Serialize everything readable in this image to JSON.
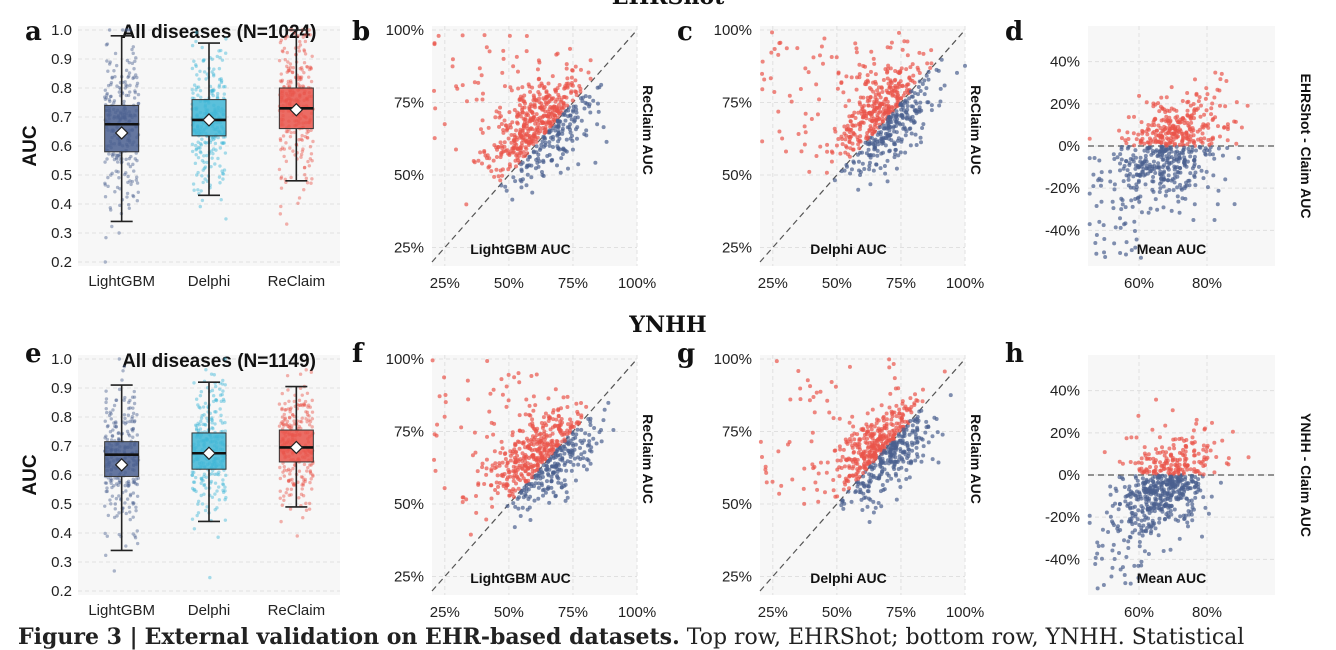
{
  "figure": {
    "caption_label": "Figure 3 |",
    "caption_title": "External validation on EHR-based datasets.",
    "caption_text": "Top row, EHRShot; bottom row, YNHH. Statistical"
  },
  "chart_data": [
    {
      "panel": "row_title",
      "text": "EHRShot"
    },
    {
      "panel": "a",
      "type": "box",
      "title": "All diseases (N=1024)",
      "ylabel": "AUC",
      "ylim": [
        0.2,
        1.0
      ],
      "yticks": [
        "0.2",
        "0.3",
        "0.4",
        "0.5",
        "0.6",
        "0.7",
        "0.8",
        "0.9",
        "1.0"
      ],
      "categories": [
        "LightGBM",
        "Delphi",
        "ReClaim"
      ],
      "colors": [
        "#4a5f8f",
        "#3fb6d6",
        "#e9544a"
      ],
      "boxes": [
        {
          "q1": 0.58,
          "median": 0.675,
          "q3": 0.74,
          "mean": 0.645,
          "whisker_low": 0.34,
          "whisker_high": 0.98
        },
        {
          "q1": 0.635,
          "median": 0.69,
          "q3": 0.76,
          "mean": 0.69,
          "whisker_low": 0.43,
          "whisker_high": 0.955
        },
        {
          "q1": 0.66,
          "median": 0.73,
          "q3": 0.8,
          "mean": 0.725,
          "whisker_low": 0.48,
          "whisker_high": 1.0
        }
      ]
    },
    {
      "panel": "b",
      "type": "scatter",
      "xlabel": "LightGBM AUC",
      "ylabel": "ReClaim AUC",
      "xticks": [
        "25%",
        "50%",
        "75%",
        "100%"
      ],
      "yticks": [
        "25%",
        "50%",
        "75%",
        "100%"
      ],
      "xlim": [
        0.2,
        1.0
      ],
      "ylim": [
        0.2,
        1.0
      ],
      "summary": {
        "x_center": 0.63,
        "x_spread": 0.1,
        "y_center": 0.72,
        "y_spread": 0.08
      }
    },
    {
      "panel": "c",
      "type": "scatter",
      "xlabel": "Delphi AUC",
      "ylabel": "ReClaim AUC",
      "xticks": [
        "25%",
        "50%",
        "75%",
        "100%"
      ],
      "yticks": [
        "25%",
        "50%",
        "75%",
        "100%"
      ],
      "xlim": [
        0.2,
        1.0
      ],
      "ylim": [
        0.2,
        1.0
      ],
      "summary": {
        "x_center": 0.69,
        "x_spread": 0.09,
        "y_center": 0.72,
        "y_spread": 0.08
      }
    },
    {
      "panel": "d",
      "type": "scatter",
      "xlabel": "Mean AUC",
      "ylabel": "EHRShot - Claim AUC",
      "xticks": [
        "60%",
        "80%"
      ],
      "yticks": [
        "40%",
        "20%",
        "0%",
        "-20%",
        "-40%"
      ],
      "xlim": [
        0.45,
        1.0
      ],
      "ylim": [
        -0.55,
        0.55
      ],
      "summary": {
        "x_center": 0.69,
        "x_spread": 0.08,
        "y_center": -0.02,
        "y_spread": 0.12
      }
    },
    {
      "panel": "row_title",
      "text": "YNHH"
    },
    {
      "panel": "e",
      "type": "box",
      "title": "All diseases (N=1149)",
      "ylabel": "AUC",
      "ylim": [
        0.2,
        1.0
      ],
      "yticks": [
        "0.2",
        "0.3",
        "0.4",
        "0.5",
        "0.6",
        "0.7",
        "0.8",
        "0.9",
        "1.0"
      ],
      "categories": [
        "LightGBM",
        "Delphi",
        "ReClaim"
      ],
      "colors": [
        "#4a5f8f",
        "#3fb6d6",
        "#e9544a"
      ],
      "boxes": [
        {
          "q1": 0.595,
          "median": 0.67,
          "q3": 0.715,
          "mean": 0.635,
          "whisker_low": 0.34,
          "whisker_high": 0.91
        },
        {
          "q1": 0.62,
          "median": 0.675,
          "q3": 0.745,
          "mean": 0.675,
          "whisker_low": 0.44,
          "whisker_high": 0.92
        },
        {
          "q1": 0.645,
          "median": 0.695,
          "q3": 0.755,
          "mean": 0.695,
          "whisker_low": 0.49,
          "whisker_high": 0.905
        }
      ]
    },
    {
      "panel": "f",
      "type": "scatter",
      "xlabel": "LightGBM AUC",
      "ylabel": "ReClaim AUC",
      "xticks": [
        "25%",
        "50%",
        "75%",
        "100%"
      ],
      "yticks": [
        "25%",
        "50%",
        "75%",
        "100%"
      ],
      "xlim": [
        0.2,
        1.0
      ],
      "ylim": [
        0.2,
        1.0
      ],
      "summary": {
        "x_center": 0.63,
        "x_spread": 0.1,
        "y_center": 0.69,
        "y_spread": 0.07
      }
    },
    {
      "panel": "g",
      "type": "scatter",
      "xlabel": "Delphi AUC",
      "ylabel": "ReClaim AUC",
      "xticks": [
        "25%",
        "50%",
        "75%",
        "100%"
      ],
      "yticks": [
        "25%",
        "50%",
        "75%",
        "100%"
      ],
      "xlim": [
        0.2,
        1.0
      ],
      "ylim": [
        0.2,
        1.0
      ],
      "summary": {
        "x_center": 0.68,
        "x_spread": 0.09,
        "y_center": 0.69,
        "y_spread": 0.07
      }
    },
    {
      "panel": "h",
      "type": "scatter",
      "xlabel": "Mean AUC",
      "ylabel": "YNHH - Claim AUC",
      "xticks": [
        "60%",
        "80%"
      ],
      "yticks": [
        "40%",
        "20%",
        "0%",
        "-20%",
        "-40%"
      ],
      "xlim": [
        0.45,
        1.0
      ],
      "ylim": [
        -0.55,
        0.55
      ],
      "summary": {
        "x_center": 0.68,
        "x_spread": 0.07,
        "y_center": -0.04,
        "y_spread": 0.11
      }
    }
  ]
}
